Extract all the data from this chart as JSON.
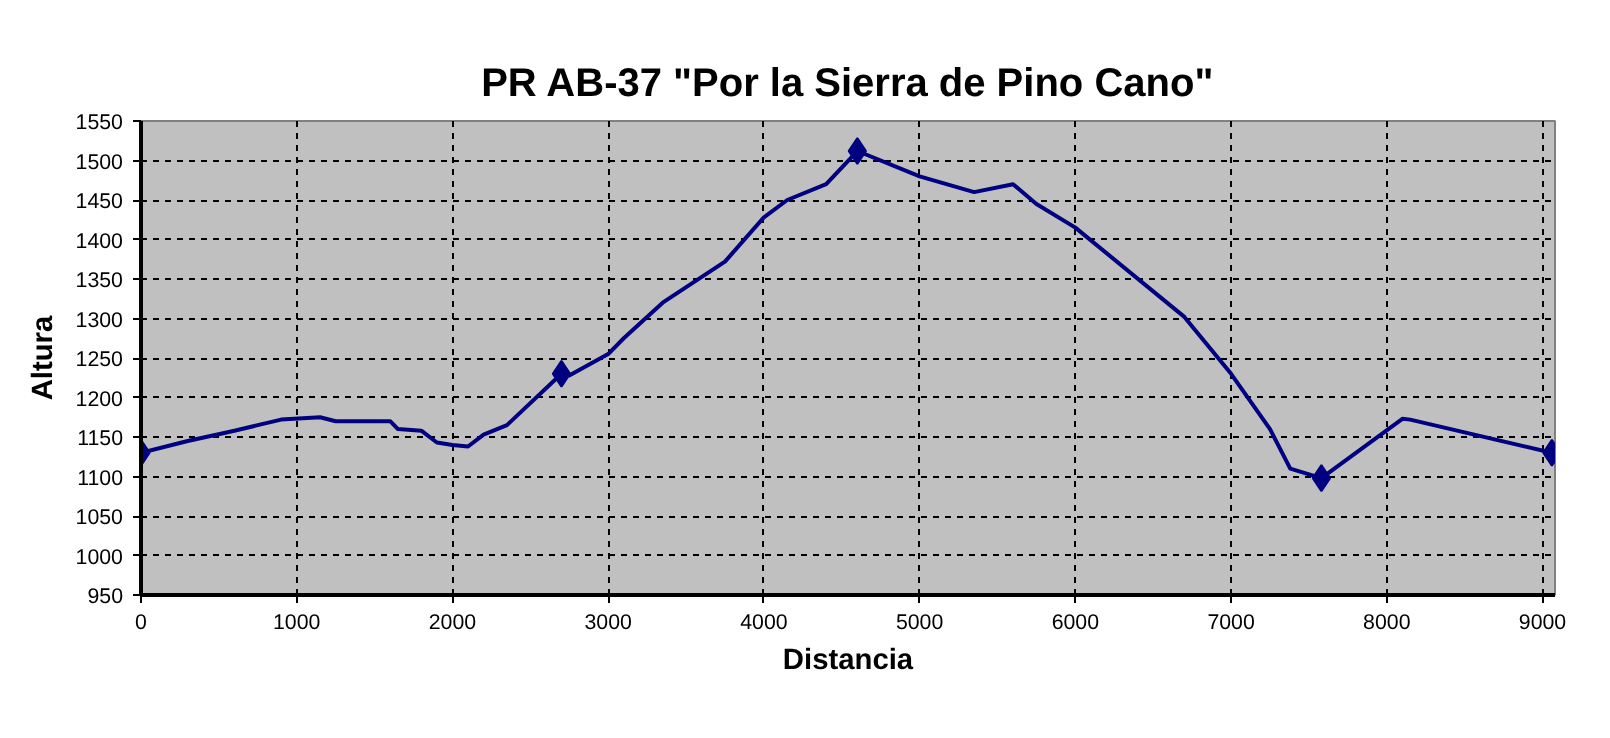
{
  "chart_data": {
    "type": "line",
    "title": "PR AB-37 \"Por la Sierra de Pino Cano\"",
    "xlabel": "Distancia",
    "ylabel": "Altura",
    "xlim": [
      0,
      9080
    ],
    "xticks": [
      0,
      1000,
      2000,
      3000,
      4000,
      5000,
      6000,
      7000,
      8000,
      9000
    ],
    "ylim": [
      950,
      1550
    ],
    "yticks": [
      950,
      1000,
      1050,
      1100,
      1150,
      1200,
      1250,
      1300,
      1350,
      1400,
      1450,
      1500,
      1550
    ],
    "grid": true,
    "line_style": "solid",
    "series": [
      {
        "marker": "none",
        "color": "#000080",
        "x": [
          0,
          300,
          600,
          900,
          1150,
          1250,
          1600,
          1650,
          1800,
          1900,
          2000,
          2100,
          2200,
          2350,
          2700,
          2750,
          3000,
          3100,
          3350,
          3750,
          4000,
          4150,
          4400,
          4600,
          5000,
          5350,
          5600,
          5750,
          6000,
          6700,
          7000,
          7250,
          7380,
          7580,
          8100,
          8150,
          9060
        ],
        "values": [
          1130,
          1145,
          1158,
          1172,
          1175,
          1170,
          1170,
          1160,
          1158,
          1143,
          1140,
          1138,
          1153,
          1165,
          1230,
          1228,
          1255,
          1275,
          1320,
          1372,
          1428,
          1450,
          1470,
          1512,
          1480,
          1460,
          1470,
          1445,
          1415,
          1302,
          1230,
          1160,
          1110,
          1098,
          1173,
          1172,
          1130
        ]
      },
      {
        "type": "scatter",
        "marker": "diamond",
        "color": "#000080",
        "x": [
          0,
          2700,
          4600,
          7580,
          9060
        ],
        "values": [
          1130,
          1230,
          1512,
          1098,
          1130
        ]
      }
    ]
  }
}
